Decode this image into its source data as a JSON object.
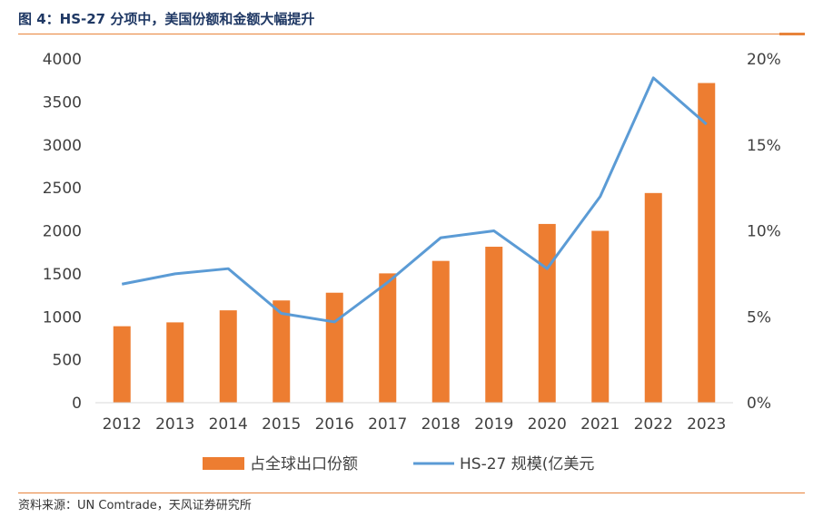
{
  "header": {
    "title": "图 4：HS-27 分项中，美国份额和金额大幅提升"
  },
  "footer": {
    "source": "资料来源：UN Comtrade，天风证券研究所"
  },
  "colors": {
    "bar": "#ed7d31",
    "line": "#5b9bd5",
    "accent_rule": "#e8833a",
    "axis": "#d9d9d9"
  },
  "chart_data": {
    "type": "bar",
    "title": "",
    "categories": [
      "2012",
      "2013",
      "2014",
      "2015",
      "2016",
      "2017",
      "2018",
      "2019",
      "2020",
      "2021",
      "2022",
      "2023"
    ],
    "series": [
      {
        "name": "占全球出口份额",
        "type": "bar",
        "axis": "left",
        "values": [
          890,
          935,
          1075,
          1190,
          1280,
          1505,
          1650,
          1815,
          2080,
          2000,
          2440,
          3720
        ]
      },
      {
        "name": "HS-27 规模(亿美元",
        "type": "line",
        "axis": "right",
        "values": [
          6.9,
          7.5,
          7.8,
          5.2,
          4.7,
          7.0,
          9.6,
          10.0,
          7.8,
          12.0,
          18.9,
          16.2
        ]
      }
    ],
    "y_left": {
      "ylim": [
        0,
        4000
      ],
      "ticks": [
        "0",
        "500",
        "1000",
        "1500",
        "2000",
        "2500",
        "3000",
        "3500",
        "4000"
      ],
      "tick_values": [
        0,
        500,
        1000,
        1500,
        2000,
        2500,
        3000,
        3500,
        4000
      ]
    },
    "y_right": {
      "ylim": [
        0,
        20
      ],
      "ticks": [
        "0%",
        "5%",
        "10%",
        "15%",
        "20%"
      ],
      "tick_values": [
        0,
        5,
        10,
        15,
        20
      ]
    },
    "legend": {
      "placement": "bottom"
    },
    "grid": false
  }
}
